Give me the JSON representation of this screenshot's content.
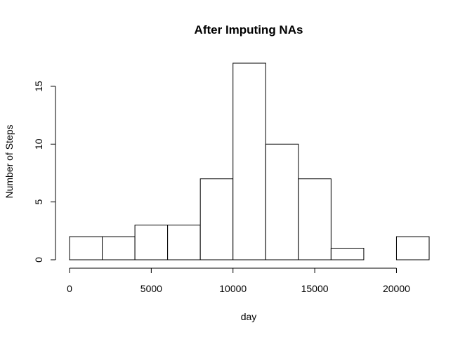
{
  "chart_data": {
    "type": "bar",
    "title": "After Imputing NAs",
    "xlabel": "day",
    "ylabel": "Number of Steps",
    "bins": [
      {
        "start": 0,
        "end": 2000,
        "count": 2
      },
      {
        "start": 2000,
        "end": 4000,
        "count": 2
      },
      {
        "start": 4000,
        "end": 6000,
        "count": 3
      },
      {
        "start": 6000,
        "end": 8000,
        "count": 3
      },
      {
        "start": 8000,
        "end": 10000,
        "count": 7
      },
      {
        "start": 10000,
        "end": 12000,
        "count": 17
      },
      {
        "start": 12000,
        "end": 14000,
        "count": 10
      },
      {
        "start": 14000,
        "end": 16000,
        "count": 7
      },
      {
        "start": 16000,
        "end": 18000,
        "count": 1
      },
      {
        "start": 18000,
        "end": 20000,
        "count": 0
      },
      {
        "start": 20000,
        "end": 22000,
        "count": 2
      }
    ],
    "xticks": [
      0,
      5000,
      10000,
      15000,
      20000
    ],
    "yticks": [
      0,
      5,
      10,
      15
    ],
    "xlim": [
      0,
      22000
    ],
    "ylim": [
      0,
      17
    ],
    "bar_fill": "#ffffff",
    "bar_edge": "#000000",
    "grid": false,
    "legend": "none"
  }
}
